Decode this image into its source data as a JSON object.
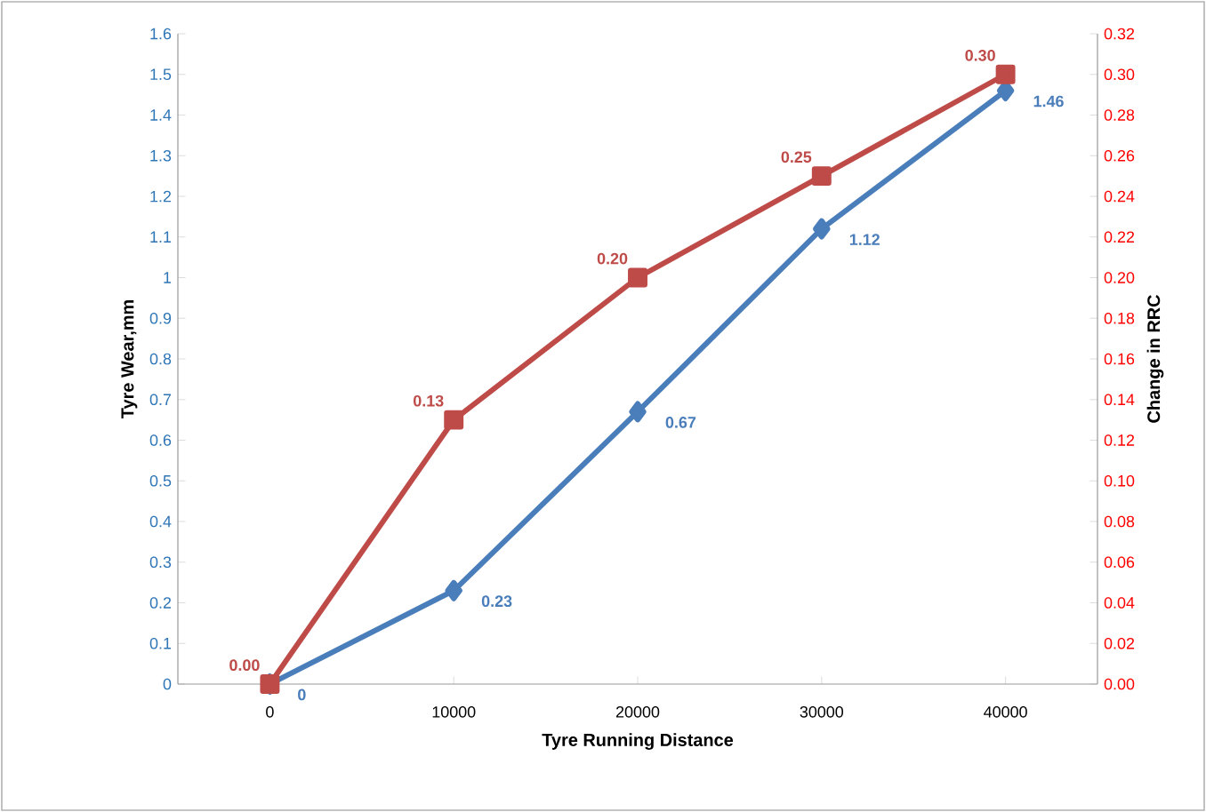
{
  "chart_data": {
    "type": "line",
    "xlabel": "Tyre Running  Distance",
    "ylabel": "Tyre Wear,mm",
    "y2label": "Change in RRC",
    "categories": [
      "0",
      "10000",
      "20000",
      "30000",
      "40000"
    ],
    "series": [
      {
        "color": "#4a7ebb",
        "marker": "diamond",
        "axis": "y",
        "values": [
          0,
          0.23,
          0.67,
          1.12,
          1.46
        ],
        "value_labels": [
          "0",
          "0.23",
          "0.67",
          "1.12",
          "1.46"
        ]
      },
      {
        "color": "#be4b48",
        "marker": "square",
        "axis": "y2",
        "values": [
          0,
          0.13,
          0.2,
          0.25,
          0.3
        ],
        "value_labels": [
          "0.00",
          "0.13",
          "0.20",
          "0.25",
          "0.30"
        ]
      }
    ],
    "ylim": [
      0,
      1.6
    ],
    "yticks": [
      0,
      0.1,
      0.2,
      0.3,
      0.4,
      0.5,
      0.6,
      0.7,
      0.8,
      0.9,
      1,
      1.1,
      1.2,
      1.3,
      1.4,
      1.5,
      1.6
    ],
    "y2lim": [
      0,
      0.32
    ],
    "y2ticks": [
      {
        "value": 0,
        "label": "0.00"
      },
      {
        "value": 0.02,
        "label": "0.02"
      },
      {
        "value": 0.04,
        "label": "0.04"
      },
      {
        "value": 0.06,
        "label": "0.06"
      },
      {
        "value": 0.08,
        "label": "0.08"
      },
      {
        "value": 0.1,
        "label": "0.10"
      },
      {
        "value": 0.12,
        "label": "0.12"
      },
      {
        "value": 0.14,
        "label": "0.14"
      },
      {
        "value": 0.16,
        "label": "0.16"
      },
      {
        "value": 0.18,
        "label": "0.18"
      },
      {
        "value": 0.2,
        "label": "0.20"
      },
      {
        "value": 0.22,
        "label": "0.22"
      },
      {
        "value": 0.24,
        "label": "0.24"
      },
      {
        "value": 0.26,
        "label": "0.26"
      },
      {
        "value": 0.28,
        "label": "0.28"
      },
      {
        "value": 0.3,
        "label": "0.30"
      },
      {
        "value": 0.32,
        "label": "0.32"
      }
    ],
    "grid": false
  }
}
